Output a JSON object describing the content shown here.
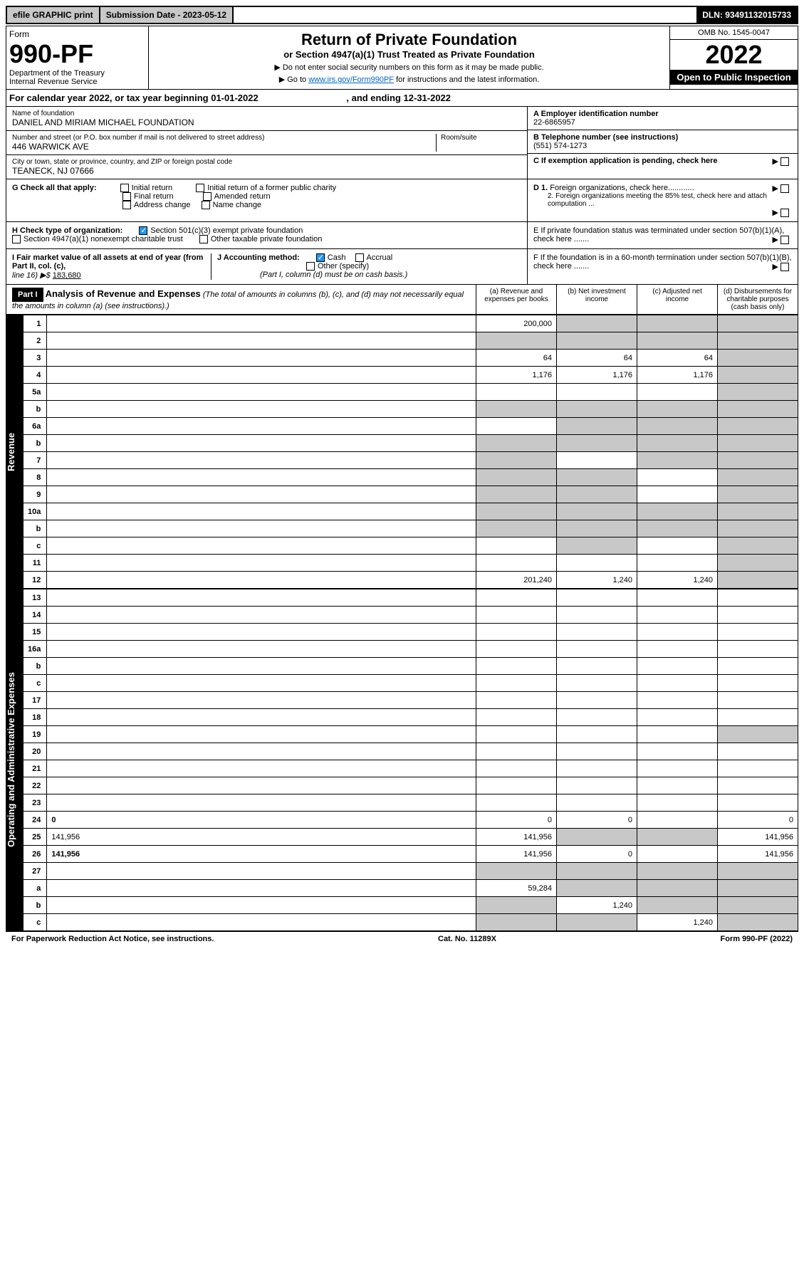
{
  "top": {
    "efile": "efile GRAPHIC print",
    "submission": "Submission Date - 2023-05-12",
    "dln": "DLN: 93491132015733"
  },
  "header": {
    "form_label": "Form",
    "form_num": "990-PF",
    "dept": "Department of the Treasury",
    "irs": "Internal Revenue Service",
    "title": "Return of Private Foundation",
    "subtitle": "or Section 4947(a)(1) Trust Treated as Private Foundation",
    "note1": "▶ Do not enter social security numbers on this form as it may be made public.",
    "note2_pre": "▶ Go to ",
    "note2_link": "www.irs.gov/Form990PF",
    "note2_post": " for instructions and the latest information.",
    "omb": "OMB No. 1545-0047",
    "year": "2022",
    "inspect": "Open to Public Inspection"
  },
  "cal_year": {
    "pre": "For calendar year 2022, or tax year beginning 01-01-2022",
    "post": ", and ending 12-31-2022"
  },
  "info": {
    "name_label": "Name of foundation",
    "name": "DANIEL AND MIRIAM MICHAEL FOUNDATION",
    "addr_label": "Number and street (or P.O. box number if mail is not delivered to street address)",
    "addr": "446 WARWICK AVE",
    "room_label": "Room/suite",
    "city_label": "City or town, state or province, country, and ZIP or foreign postal code",
    "city": "TEANECK, NJ  07666",
    "ein_label": "A Employer identification number",
    "ein": "22-6865957",
    "phone_label": "B Telephone number (see instructions)",
    "phone": "(551) 574-1273",
    "c_label": "C If exemption application is pending, check here"
  },
  "g": {
    "label": "G Check all that apply:",
    "initial": "Initial return",
    "initial_former": "Initial return of a former public charity",
    "final": "Final return",
    "amended": "Amended return",
    "addr_change": "Address change",
    "name_change": "Name change"
  },
  "d": {
    "d1": "D 1. Foreign organizations, check here............",
    "d2": "2. Foreign organizations meeting the 85% test, check here and attach computation ..."
  },
  "h": {
    "label": "H Check type of organization:",
    "s501": "Section 501(c)(3) exempt private foundation",
    "s4947": "Section 4947(a)(1) nonexempt charitable trust",
    "other_tax": "Other taxable private foundation"
  },
  "e": {
    "label": "E  If private foundation status was terminated under section 507(b)(1)(A), check here ......."
  },
  "i": {
    "label": "I Fair market value of all assets at end of year (from Part II, col. (c),",
    "line": "line 16) ▶$ ",
    "val": "183,680"
  },
  "j": {
    "label": "J Accounting method:",
    "cash": "Cash",
    "accrual": "Accrual",
    "other": "Other (specify)",
    "note": "(Part I, column (d) must be on cash basis.)"
  },
  "f": {
    "label": "F  If the foundation is in a 60-month termination under section 507(b)(1)(B), check here ......."
  },
  "part1": {
    "label": "Part I",
    "title": "Analysis of Revenue and Expenses",
    "note": "(The total of amounts in columns (b), (c), and (d) may not necessarily equal the amounts in column (a) (see instructions).)",
    "col_a": "(a)    Revenue and expenses per books",
    "col_b": "(b)    Net investment income",
    "col_c": "(c)   Adjusted net income",
    "col_d": "(d)   Disbursements for charitable purposes (cash basis only)"
  },
  "sides": {
    "revenue": "Revenue",
    "expenses": "Operating and Administrative Expenses"
  },
  "rows": [
    {
      "n": "1",
      "d": "",
      "a": "200,000",
      "b": "",
      "c": "",
      "grey": [
        "b",
        "c",
        "d"
      ]
    },
    {
      "n": "2",
      "d": "",
      "a": "",
      "b": "",
      "c": "",
      "grey": [
        "a",
        "b",
        "c",
        "d"
      ]
    },
    {
      "n": "3",
      "d": "",
      "a": "64",
      "b": "64",
      "c": "64",
      "grey": [
        "d"
      ]
    },
    {
      "n": "4",
      "d": "",
      "a": "1,176",
      "b": "1,176",
      "c": "1,176",
      "grey": [
        "d"
      ]
    },
    {
      "n": "5a",
      "d": "",
      "a": "",
      "b": "",
      "c": "",
      "grey": [
        "d"
      ]
    },
    {
      "n": "b",
      "d": "",
      "a": "",
      "b": "",
      "c": "",
      "grey": [
        "a",
        "b",
        "c",
        "d"
      ]
    },
    {
      "n": "6a",
      "d": "",
      "a": "",
      "b": "",
      "c": "",
      "grey": [
        "b",
        "c",
        "d"
      ]
    },
    {
      "n": "b",
      "d": "",
      "a": "",
      "b": "",
      "c": "",
      "grey": [
        "a",
        "b",
        "c",
        "d"
      ]
    },
    {
      "n": "7",
      "d": "",
      "a": "",
      "b": "",
      "c": "",
      "grey": [
        "a",
        "c",
        "d"
      ]
    },
    {
      "n": "8",
      "d": "",
      "a": "",
      "b": "",
      "c": "",
      "grey": [
        "a",
        "b",
        "d"
      ]
    },
    {
      "n": "9",
      "d": "",
      "a": "",
      "b": "",
      "c": "",
      "grey": [
        "a",
        "b",
        "d"
      ]
    },
    {
      "n": "10a",
      "d": "",
      "a": "",
      "b": "",
      "c": "",
      "grey": [
        "a",
        "b",
        "c",
        "d"
      ]
    },
    {
      "n": "b",
      "d": "",
      "a": "",
      "b": "",
      "c": "",
      "grey": [
        "a",
        "b",
        "c",
        "d"
      ]
    },
    {
      "n": "c",
      "d": "",
      "a": "",
      "b": "",
      "c": "",
      "grey": [
        "b",
        "d"
      ]
    },
    {
      "n": "11",
      "d": "",
      "a": "",
      "b": "",
      "c": "",
      "grey": [
        "d"
      ]
    },
    {
      "n": "12",
      "d": "",
      "a": "201,240",
      "b": "1,240",
      "c": "1,240",
      "grey": [
        "d"
      ],
      "bold": true
    }
  ],
  "exp_rows": [
    {
      "n": "13",
      "d": "",
      "a": "",
      "b": "",
      "c": ""
    },
    {
      "n": "14",
      "d": "",
      "a": "",
      "b": "",
      "c": ""
    },
    {
      "n": "15",
      "d": "",
      "a": "",
      "b": "",
      "c": ""
    },
    {
      "n": "16a",
      "d": "",
      "a": "",
      "b": "",
      "c": ""
    },
    {
      "n": "b",
      "d": "",
      "a": "",
      "b": "",
      "c": ""
    },
    {
      "n": "c",
      "d": "",
      "a": "",
      "b": "",
      "c": ""
    },
    {
      "n": "17",
      "d": "",
      "a": "",
      "b": "",
      "c": ""
    },
    {
      "n": "18",
      "d": "",
      "a": "",
      "b": "",
      "c": ""
    },
    {
      "n": "19",
      "d": "",
      "a": "",
      "b": "",
      "c": "",
      "grey": [
        "d"
      ]
    },
    {
      "n": "20",
      "d": "",
      "a": "",
      "b": "",
      "c": ""
    },
    {
      "n": "21",
      "d": "",
      "a": "",
      "b": "",
      "c": ""
    },
    {
      "n": "22",
      "d": "",
      "a": "",
      "b": "",
      "c": ""
    },
    {
      "n": "23",
      "d": "",
      "a": "",
      "b": "",
      "c": ""
    },
    {
      "n": "24",
      "d": "0",
      "a": "0",
      "b": "0",
      "c": "",
      "bold": true
    },
    {
      "n": "25",
      "d": "141,956",
      "a": "141,956",
      "b": "",
      "c": "",
      "grey": [
        "b",
        "c"
      ]
    },
    {
      "n": "26",
      "d": "141,956",
      "a": "141,956",
      "b": "0",
      "c": "",
      "bold": true
    },
    {
      "n": "27",
      "d": "",
      "a": "",
      "b": "",
      "c": "",
      "grey": [
        "a",
        "b",
        "c",
        "d"
      ]
    },
    {
      "n": "a",
      "d": "",
      "a": "59,284",
      "b": "",
      "c": "",
      "grey": [
        "b",
        "c",
        "d"
      ],
      "bold": true
    },
    {
      "n": "b",
      "d": "",
      "a": "",
      "b": "1,240",
      "c": "",
      "grey": [
        "a",
        "c",
        "d"
      ],
      "bold": true
    },
    {
      "n": "c",
      "d": "",
      "a": "",
      "b": "",
      "c": "1,240",
      "grey": [
        "a",
        "b",
        "d"
      ],
      "bold": true
    }
  ],
  "footer": {
    "left": "For Paperwork Reduction Act Notice, see instructions.",
    "mid": "Cat. No. 11289X",
    "right": "Form 990-PF (2022)"
  }
}
